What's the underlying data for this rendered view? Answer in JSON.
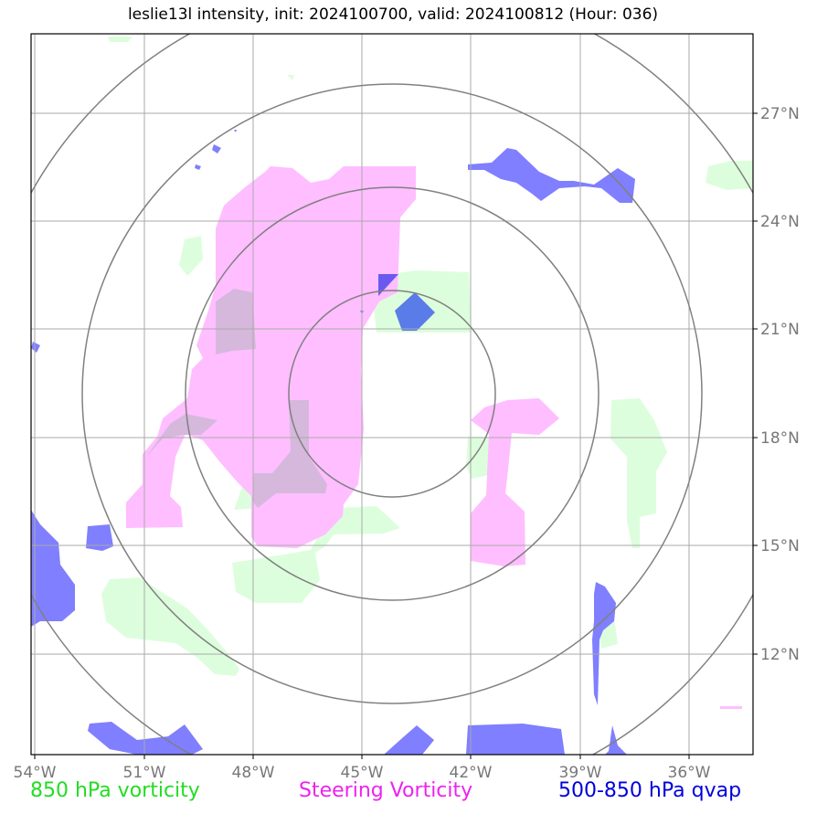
{
  "title": "leslie13l intensity, init: 2024100700, valid: 2024100812 (Hour: 036)",
  "map": {
    "lon_ticks": [
      "54°W",
      "51°W",
      "48°W",
      "45°W",
      "42°W",
      "39°W",
      "36°W"
    ],
    "lat_ticks": [
      "27°N",
      "24°N",
      "21°N",
      "18°N",
      "15°N",
      "12°N"
    ],
    "range_rings_count": 4
  },
  "legend": {
    "item1": "850 hPa vorticity",
    "item2": "Steering Vorticity",
    "item3": "500-850 hPa qvap"
  },
  "colors": {
    "vorticity_850": "#ddfedd",
    "steering_vorticity": "#ffbeff",
    "qvap": "#7f7fff",
    "grid": "#aaaaaa",
    "rings": "#808080"
  }
}
